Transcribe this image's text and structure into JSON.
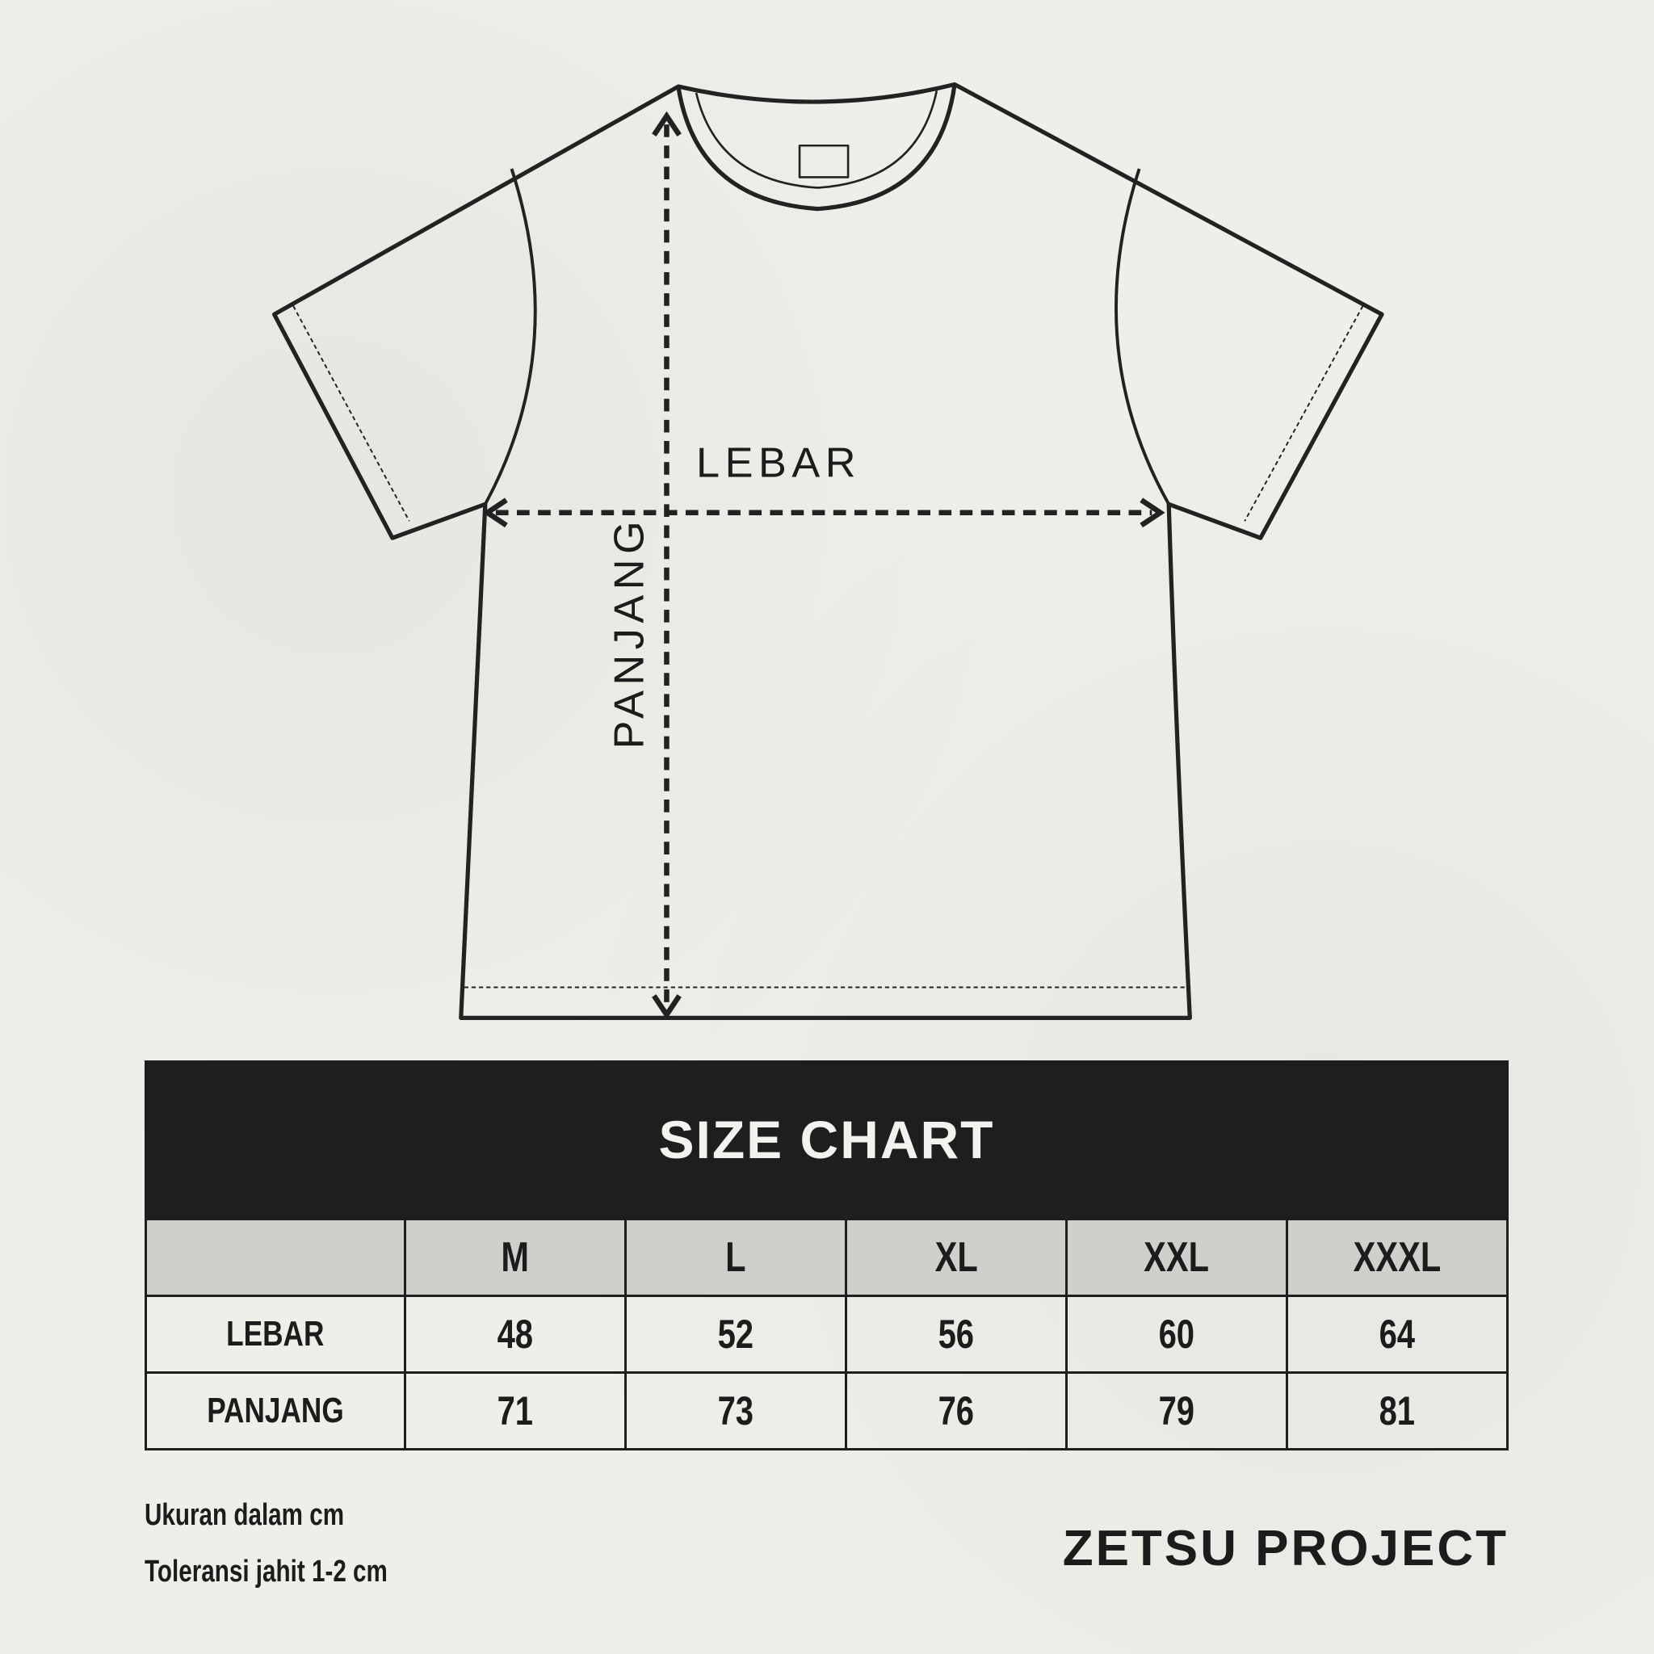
{
  "diagram": {
    "width_label": "LEBAR",
    "length_label": "PANJANG"
  },
  "table": {
    "title": "SIZE CHART",
    "sizes": [
      "M",
      "L",
      "XL",
      "XXL",
      "XXXL"
    ],
    "rows": [
      {
        "label": "LEBAR",
        "values": [
          "48",
          "52",
          "56",
          "60",
          "64"
        ]
      },
      {
        "label": "PANJANG",
        "values": [
          "71",
          "73",
          "76",
          "79",
          "81"
        ]
      }
    ]
  },
  "notes": [
    "Ukuran dalam cm",
    "Toleransi jahit 1-2 cm"
  ],
  "brand": "ZETSU PROJECT",
  "colors": {
    "background": "#efeee9",
    "ink": "#1e1e1e",
    "header_gray": "#cfcfcc"
  }
}
